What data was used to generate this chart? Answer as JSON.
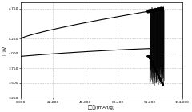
{
  "xlabel": "比容量/(mAh/g)",
  "ylabel": "电压/V",
  "xlim": [
    0,
    114000
  ],
  "ylim": [
    3.25,
    4.85
  ],
  "xticks": [
    0,
    22800,
    45600,
    68400,
    91200,
    114000
  ],
  "xtick_labels": [
    "0.000",
    "22,800",
    "45,600",
    "68,400",
    "91,200",
    "114,000"
  ],
  "yticks": [
    3.25,
    3.5,
    3.75,
    4.0,
    4.25,
    4.75
  ],
  "ytick_labels": [
    "3.250",
    "3.500",
    "3.750",
    "4.000",
    "4.250",
    "4.750"
  ],
  "bg_color": "#ffffff",
  "grid_color": "#bbbbbb",
  "charge_start_y": 4.25,
  "charge_end_y": 4.75,
  "discharge_start_y": 3.95,
  "discharge_mid_y": 4.1,
  "discharge_drop_x": 91000,
  "discharge_drop_y": 3.5,
  "bundle_start_x": 91000,
  "bundle_end_x": 101000,
  "num_cycles": 60
}
